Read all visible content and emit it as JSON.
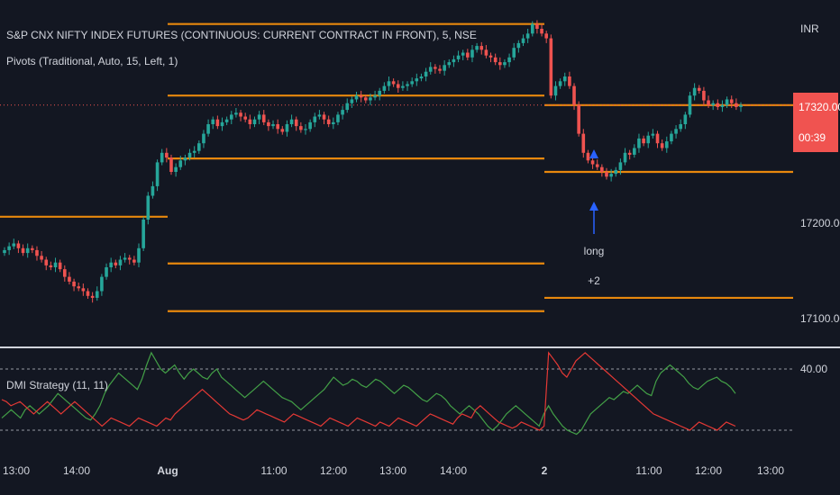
{
  "header": {
    "title": "S&P CNX NIFTY INDEX FUTURES (CONTINUOUS: CURRENT CONTRACT IN FRONT), 5, NSE",
    "indicator": "Pivots (Traditional, Auto, 15, Left, 1)",
    "currency": "INR"
  },
  "price_badge": {
    "price": "17320.00",
    "countdown": "00:39",
    "color": "#f05350"
  },
  "signal": {
    "label": "long",
    "qty": "+2",
    "color": "#2962ff"
  },
  "colors": {
    "up": "#26a69a",
    "down": "#ef5350",
    "pivot": "#e8880d",
    "dmi_plus": "#43a047",
    "dmi_minus": "#e53935",
    "background": "#131722"
  },
  "chart_data": [
    {
      "type": "candlestick",
      "title": "S&P CNX NIFTY INDEX FUTURES (CONTINUOUS: CURRENT CONTRACT IN FRONT), 5, NSE",
      "ylabel": "INR",
      "y_ticks": [
        "17320.00",
        "17200.00",
        "17100.00"
      ],
      "y_tick_values": [
        17320,
        17200,
        17100
      ],
      "ylim": [
        17052,
        17403
      ],
      "x_ticks": [
        "13:00",
        "14:00",
        "Aug",
        "11:00",
        "12:00",
        "13:00",
        "14:00",
        "2",
        "11:00",
        "12:00",
        "13:00"
      ],
      "last_price": 17320.0,
      "pivot_levels": [
        {
          "x_start": "13:00",
          "x_end": "Aug",
          "value": 17203
        },
        {
          "x_start": "Aug",
          "x_end": "2",
          "value": 17405
        },
        {
          "x_start": "Aug",
          "x_end": "2",
          "value": 17330
        },
        {
          "x_start": "Aug",
          "x_end": "2",
          "value": 17264
        },
        {
          "x_start": "Aug",
          "x_end": "2",
          "value": 17154
        },
        {
          "x_start": "Aug",
          "x_end": "2",
          "value": 17104
        },
        {
          "x_start": "2",
          "x_end": "13:00",
          "value": 17320
        },
        {
          "x_start": "2",
          "x_end": "13:00",
          "value": 17250
        },
        {
          "x_start": "2",
          "x_end": "13:00",
          "value": 17118
        }
      ],
      "close_series_approx": [
        17168,
        17172,
        17175,
        17170,
        17165,
        17170,
        17168,
        17162,
        17158,
        17152,
        17150,
        17155,
        17148,
        17140,
        17135,
        17130,
        17128,
        17125,
        17120,
        17118,
        17125,
        17140,
        17150,
        17155,
        17152,
        17158,
        17160,
        17158,
        17155,
        17170,
        17200,
        17225,
        17235,
        17260,
        17270,
        17265,
        17250,
        17255,
        17262,
        17265,
        17270,
        17272,
        17280,
        17290,
        17300,
        17305,
        17298,
        17302,
        17305,
        17310,
        17312,
        17308,
        17305,
        17300,
        17305,
        17310,
        17302,
        17298,
        17300,
        17295,
        17292,
        17300,
        17305,
        17298,
        17294,
        17295,
        17302,
        17308,
        17310,
        17305,
        17300,
        17302,
        17310,
        17315,
        17322,
        17326,
        17330,
        17328,
        17325,
        17328,
        17330,
        17335,
        17340,
        17345,
        17342,
        17338,
        17340,
        17342,
        17345,
        17348,
        17350,
        17355,
        17360,
        17358,
        17356,
        17362,
        17365,
        17368,
        17372,
        17375,
        17370,
        17378,
        17382,
        17378,
        17372,
        17370,
        17365,
        17362,
        17365,
        17370,
        17380,
        17385,
        17390,
        17395,
        17405,
        17400,
        17395,
        17390,
        17330,
        17340,
        17345,
        17350,
        17340,
        17320,
        17290,
        17270,
        17262,
        17258,
        17255,
        17250,
        17245,
        17248,
        17252,
        17260,
        17270,
        17268,
        17275,
        17285,
        17280,
        17288,
        17290,
        17280,
        17275,
        17282,
        17290,
        17295,
        17300,
        17310,
        17330,
        17338,
        17335,
        17325,
        17320,
        17322,
        17318,
        17320,
        17326,
        17322,
        17318,
        17320
      ]
    },
    {
      "type": "line",
      "title": "DMI Strategy (11, 11)",
      "y_ticks": [
        "40.00"
      ],
      "y_tick_values": [
        40
      ],
      "ylim": [
        0,
        50
      ],
      "reference_lines": [
        40,
        10
      ],
      "series": [
        {
          "values": [
            16,
            18,
            20,
            18,
            16,
            20,
            22,
            20,
            18,
            20,
            22,
            25,
            28,
            26,
            24,
            22,
            20,
            18,
            16,
            15,
            18,
            22,
            28,
            32,
            35,
            38,
            36,
            34,
            32,
            30,
            35,
            42,
            48,
            44,
            40,
            38,
            40,
            42,
            38,
            35,
            38,
            40,
            38,
            36,
            35,
            38,
            40,
            36,
            34,
            32,
            30,
            28,
            26,
            28,
            30,
            32,
            34,
            32,
            30,
            28,
            26,
            25,
            24,
            22,
            20,
            22,
            24,
            26,
            28,
            30,
            33,
            36,
            34,
            32,
            33,
            35,
            34,
            32,
            31,
            33,
            35,
            34,
            32,
            30,
            28,
            30,
            32,
            31,
            29,
            27,
            25,
            24,
            26,
            28,
            27,
            25,
            22,
            20,
            18,
            20,
            22,
            20,
            18,
            15,
            12,
            10,
            12,
            15,
            18,
            20,
            22,
            20,
            18,
            16,
            14,
            12,
            18,
            22,
            18,
            15,
            12,
            10,
            9,
            8,
            10,
            14,
            18,
            20,
            22,
            24,
            26,
            25,
            27,
            29,
            28,
            30,
            32,
            30,
            28,
            27,
            34,
            38,
            40,
            42,
            40,
            38,
            36,
            33,
            31,
            30,
            32,
            34,
            35,
            36,
            34,
            33,
            31,
            28
          ]
        },
        {
          "values": [
            25,
            24,
            22,
            23,
            24,
            22,
            20,
            18,
            20,
            22,
            24,
            22,
            20,
            18,
            20,
            22,
            24,
            22,
            20,
            18,
            16,
            14,
            12,
            14,
            16,
            15,
            14,
            13,
            12,
            14,
            16,
            15,
            14,
            13,
            12,
            14,
            16,
            15,
            18,
            20,
            22,
            24,
            26,
            28,
            30,
            28,
            26,
            24,
            22,
            20,
            18,
            17,
            16,
            15,
            16,
            18,
            20,
            19,
            18,
            17,
            16,
            15,
            14,
            16,
            18,
            17,
            16,
            15,
            14,
            13,
            12,
            14,
            16,
            15,
            14,
            13,
            12,
            14,
            16,
            15,
            14,
            13,
            12,
            14,
            13,
            12,
            14,
            16,
            15,
            14,
            13,
            12,
            14,
            16,
            18,
            17,
            16,
            15,
            14,
            13,
            16,
            18,
            17,
            16,
            20,
            22,
            20,
            18,
            16,
            14,
            13,
            12,
            11,
            12,
            14,
            13,
            12,
            11,
            10,
            12,
            48,
            45,
            42,
            38,
            36,
            40,
            44,
            46,
            48,
            46,
            44,
            42,
            40,
            38,
            36,
            34,
            32,
            30,
            28,
            26,
            24,
            22,
            20,
            18,
            17,
            16,
            15,
            14,
            13,
            12,
            11,
            10,
            12,
            14,
            13,
            12,
            11,
            10,
            12,
            14,
            13,
            12
          ]
        }
      ]
    }
  ]
}
